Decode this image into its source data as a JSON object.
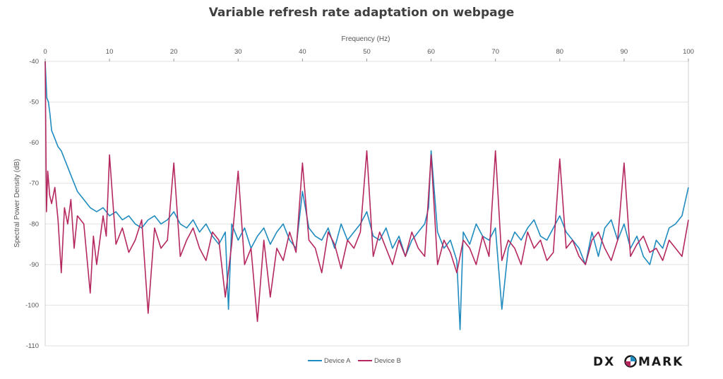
{
  "chart_data": {
    "type": "line",
    "title": "Variable refresh rate adaptation on webpage",
    "xlabel": "Frequency (Hz)",
    "ylabel": "Spectral Power Density (dB)",
    "xlim": [
      0,
      100
    ],
    "ylim": [
      -110,
      -40
    ],
    "x_ticks": [
      0,
      10,
      20,
      30,
      40,
      50,
      60,
      70,
      80,
      90,
      100
    ],
    "y_ticks": [
      -40,
      -50,
      -60,
      -70,
      -80,
      -90,
      -100,
      -110
    ],
    "x_axis_position": "top",
    "grid": true,
    "legend_position": "bottom-center",
    "series": [
      {
        "name": "Device A",
        "color": "#1f8bbf",
        "x": [
          0,
          0.25,
          0.5,
          0.75,
          1,
          1.5,
          2,
          2.5,
          3,
          3.5,
          4,
          4.5,
          5,
          6,
          7,
          8,
          9,
          10,
          11,
          12,
          13,
          14,
          15,
          16,
          17,
          18,
          19,
          20,
          21,
          22,
          23,
          24,
          25,
          26,
          27,
          28,
          28.5,
          29,
          30,
          31,
          32,
          33,
          34,
          35,
          36,
          37,
          38,
          39,
          40,
          41,
          42,
          43,
          44,
          45,
          46,
          47,
          48,
          49,
          50,
          51,
          52,
          53,
          54,
          55,
          56,
          57,
          58,
          59,
          59.6,
          60,
          61,
          62,
          63,
          64,
          64.5,
          65,
          66,
          67,
          68,
          69,
          70,
          71,
          72,
          73,
          74,
          75,
          76,
          77,
          78,
          79,
          80,
          81,
          82,
          83,
          84,
          85,
          86,
          87,
          88,
          89,
          90,
          91,
          92,
          93,
          94,
          95,
          96,
          97,
          98,
          99,
          100
        ],
        "y": [
          -40,
          -49,
          -50,
          -53,
          -57,
          -59,
          -61,
          -62,
          -64,
          -66,
          -68,
          -70,
          -72,
          -74,
          -76,
          -77,
          -76,
          -78,
          -77,
          -79,
          -78,
          -80,
          -81,
          -79,
          -78,
          -80,
          -79,
          -77,
          -80,
          -81,
          -79,
          -82,
          -80,
          -83,
          -85,
          -82,
          -101,
          -80,
          -84,
          -81,
          -86,
          -83,
          -81,
          -85,
          -82,
          -80,
          -84,
          -86,
          -72,
          -81,
          -83,
          -84,
          -81,
          -86,
          -80,
          -84,
          -82,
          -80,
          -77,
          -83,
          -84,
          -81,
          -86,
          -83,
          -88,
          -84,
          -82,
          -80,
          -76,
          -62,
          -82,
          -86,
          -84,
          -89,
          -106,
          -82,
          -85,
          -80,
          -83,
          -84,
          -81,
          -101,
          -86,
          -82,
          -84,
          -81,
          -79,
          -83,
          -84,
          -81,
          -78,
          -82,
          -84,
          -86,
          -90,
          -82,
          -88,
          -81,
          -79,
          -84,
          -80,
          -86,
          -83,
          -88,
          -90,
          -84,
          -86,
          -81,
          -80,
          -78,
          -71
        ]
      },
      {
        "name": "Device B",
        "color": "#b5285f",
        "x": [
          0,
          0.2,
          0.4,
          0.7,
          1,
          1.5,
          2,
          2.5,
          3,
          3.5,
          4,
          4.5,
          5,
          6,
          7,
          7.5,
          8,
          9,
          9.5,
          10,
          11,
          12,
          13,
          14,
          15,
          16,
          17,
          18,
          19,
          20,
          21,
          22,
          23,
          24,
          25,
          26,
          27,
          28,
          29,
          30,
          31,
          32,
          33,
          34,
          35,
          36,
          37,
          38,
          39,
          40,
          41,
          42,
          43,
          44,
          45,
          46,
          47,
          48,
          49,
          50,
          51,
          52,
          53,
          54,
          55,
          56,
          57,
          58,
          59,
          60,
          61,
          62,
          63,
          64,
          65,
          66,
          67,
          68,
          69,
          70,
          71,
          72,
          73,
          74,
          75,
          76,
          77,
          78,
          79,
          80,
          81,
          82,
          83,
          84,
          85,
          86,
          87,
          88,
          89,
          90,
          91,
          92,
          93,
          94,
          95,
          96,
          97,
          98,
          99,
          100
        ],
        "y": [
          -40,
          -77,
          -67,
          -73,
          -75,
          -71,
          -79,
          -92,
          -76,
          -80,
          -74,
          -86,
          -78,
          -80,
          -97,
          -83,
          -90,
          -78,
          -83,
          -63,
          -85,
          -81,
          -87,
          -84,
          -79,
          -102,
          -81,
          -86,
          -84,
          -65,
          -88,
          -84,
          -81,
          -86,
          -89,
          -82,
          -84,
          -98,
          -85,
          -67,
          -90,
          -86,
          -104,
          -84,
          -98,
          -86,
          -89,
          -82,
          -87,
          -65,
          -84,
          -86,
          -92,
          -82,
          -85,
          -91,
          -84,
          -86,
          -82,
          -62,
          -88,
          -82,
          -86,
          -90,
          -84,
          -88,
          -82,
          -86,
          -88,
          -63,
          -90,
          -84,
          -87,
          -92,
          -84,
          -86,
          -90,
          -83,
          -88,
          -62,
          -89,
          -84,
          -86,
          -90,
          -82,
          -86,
          -84,
          -89,
          -87,
          -64,
          -86,
          -84,
          -88,
          -90,
          -84,
          -82,
          -86,
          -89,
          -84,
          -65,
          -88,
          -85,
          -83,
          -87,
          -86,
          -89,
          -84,
          -86,
          -88,
          -79
        ]
      }
    ]
  },
  "brand": {
    "logo_left": "DX",
    "logo_right": "MARK"
  }
}
